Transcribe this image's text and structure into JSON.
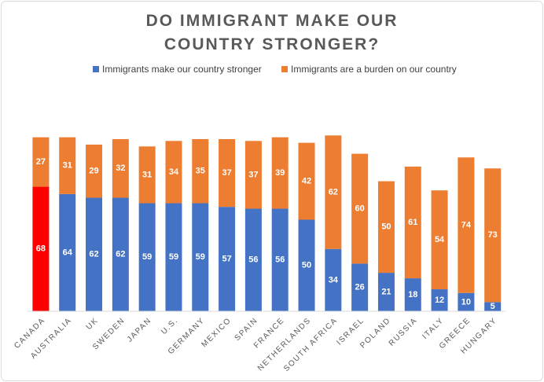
{
  "chart_data": {
    "type": "stacked-bar",
    "title": "DO IMMIGRANT MAKE OUR COUNTRY STRONGER?",
    "categories": [
      "CANADA",
      "AUSTRALIA",
      "UK",
      "SWEDEN",
      "JAPAN",
      "U.S.",
      "GERMANY",
      "MEXICO",
      "SPAIN",
      "FRANCE",
      "NETHERLANDS",
      "SOUTH AFRICA",
      "ISRAEL",
      "POLAND",
      "RUSSIA",
      "ITALY",
      "GREECE",
      "HUNGARY"
    ],
    "series": [
      {
        "name": "Immigrants make our country stronger",
        "color": "#4472c4",
        "colors": [
          "#ff0000",
          "#4472c4",
          "#4472c4",
          "#4472c4",
          "#4472c4",
          "#4472c4",
          "#4472c4",
          "#4472c4",
          "#4472c4",
          "#4472c4",
          "#4472c4",
          "#4472c4",
          "#4472c4",
          "#4472c4",
          "#4472c4",
          "#4472c4",
          "#4472c4",
          "#4472c4"
        ],
        "values": [
          68,
          64,
          62,
          62,
          59,
          59,
          59,
          57,
          56,
          56,
          50,
          34,
          26,
          21,
          18,
          12,
          10,
          5
        ]
      },
      {
        "name": "Immigrants are a burden on our country",
        "color": "#ed7d31",
        "values": [
          27,
          31,
          29,
          32,
          31,
          34,
          35,
          37,
          37,
          39,
          42,
          62,
          60,
          50,
          61,
          54,
          74,
          73
        ]
      }
    ],
    "ylim": [
      0,
      100
    ]
  }
}
